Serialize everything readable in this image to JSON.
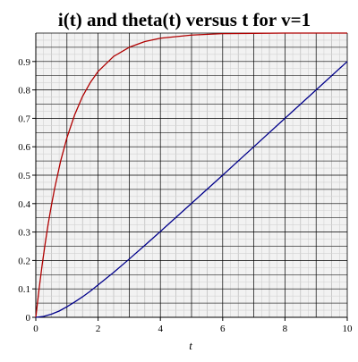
{
  "chart_data": {
    "type": "line",
    "title": "i(t) and theta(t) versus t for v=1",
    "xlabel": "t",
    "ylabel": "",
    "xlim": [
      0,
      10
    ],
    "ylim": [
      0,
      1
    ],
    "x_ticks": [
      0,
      2,
      4,
      6,
      8,
      10
    ],
    "y_ticks": [
      0,
      0.1,
      0.2,
      0.3,
      0.4,
      0.5,
      0.6,
      0.7,
      0.8,
      0.9
    ],
    "x_tick_labels": [
      "0",
      "2",
      "4",
      "6",
      "8",
      "10"
    ],
    "y_tick_labels": [
      "0",
      "0.1",
      "0.2",
      "0.3",
      "0.4",
      "0.5",
      "0.6",
      "0.7",
      "0.8",
      "0.9"
    ],
    "grid": true,
    "legend": "none",
    "series": [
      {
        "color": "#b00000",
        "x": [
          0,
          0.1,
          0.2,
          0.3,
          0.4,
          0.5,
          0.6,
          0.8,
          1.0,
          1.25,
          1.5,
          1.75,
          2.0,
          2.5,
          3.0,
          3.5,
          4.0,
          5.0,
          6.0,
          7.0,
          8.0,
          9.0,
          10.0
        ],
        "y": [
          0,
          0.095,
          0.181,
          0.259,
          0.33,
          0.393,
          0.451,
          0.551,
          0.632,
          0.713,
          0.777,
          0.826,
          0.865,
          0.918,
          0.95,
          0.97,
          0.982,
          0.993,
          0.998,
          0.999,
          1.0,
          1.0,
          1.0
        ]
      },
      {
        "color": "#00008b",
        "x": [
          0,
          0.25,
          0.5,
          0.75,
          1.0,
          1.25,
          1.5,
          1.75,
          2.0,
          2.5,
          3.0,
          3.5,
          4.0,
          5.0,
          6.0,
          7.0,
          8.0,
          9.0,
          10.0
        ],
        "y": [
          0,
          0.003,
          0.011,
          0.022,
          0.037,
          0.054,
          0.072,
          0.092,
          0.114,
          0.158,
          0.205,
          0.253,
          0.302,
          0.401,
          0.5,
          0.6,
          0.7,
          0.8,
          0.9
        ]
      }
    ]
  }
}
